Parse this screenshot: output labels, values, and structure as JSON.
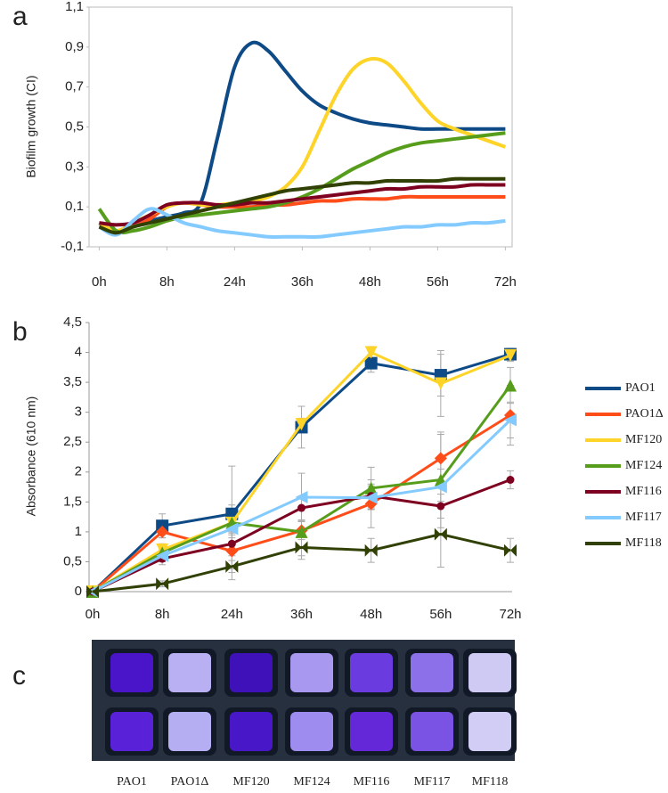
{
  "chart_data": [
    {
      "type": "line",
      "panel_label": "a",
      "y_label": "Biofilm growth (CI)",
      "xlim": [
        -0.15,
        6.1
      ],
      "ylim": [
        -0.1,
        1.1
      ],
      "xticks": [
        {
          "value": 0,
          "label": "0h"
        },
        {
          "value": 1,
          "label": "8h"
        },
        {
          "value": 2,
          "label": "24h"
        },
        {
          "value": 3,
          "label": "36h"
        },
        {
          "value": 4,
          "label": "48h"
        },
        {
          "value": 5,
          "label": "56h"
        },
        {
          "value": 6,
          "label": "72h"
        }
      ],
      "yticks": [
        {
          "value": -0.1,
          "label": "-0,1"
        },
        {
          "value": 0.1,
          "label": "0,1"
        },
        {
          "value": 0.3,
          "label": "0,3"
        },
        {
          "value": 0.5,
          "label": "0,5"
        },
        {
          "value": 0.7,
          "label": "0,7"
        },
        {
          "value": 0.9,
          "label": "0,9"
        },
        {
          "value": 1.1,
          "label": "1,1"
        }
      ],
      "grid": false,
      "x": [
        0,
        0.25,
        0.5,
        0.75,
        1,
        1.25,
        1.5,
        1.75,
        2,
        2.25,
        2.5,
        2.75,
        3,
        3.25,
        3.5,
        3.75,
        4,
        4.25,
        4.5,
        4.75,
        5,
        5.25,
        5.5,
        5.75,
        6
      ],
      "series": [
        {
          "color": "#0e4a86",
          "values": [
            0.02,
            -0.03,
            0.0,
            0.03,
            0.05,
            0.07,
            0.12,
            0.45,
            0.8,
            0.92,
            0.88,
            0.78,
            0.68,
            0.61,
            0.57,
            0.54,
            0.52,
            0.51,
            0.5,
            0.49,
            0.49,
            0.49,
            0.49,
            0.49,
            0.49
          ]
        },
        {
          "color": "#ff4d1a",
          "values": [
            0.0,
            -0.02,
            0.0,
            0.04,
            0.1,
            0.12,
            0.11,
            0.1,
            0.1,
            0.1,
            0.11,
            0.11,
            0.12,
            0.13,
            0.13,
            0.14,
            0.14,
            0.14,
            0.15,
            0.15,
            0.15,
            0.15,
            0.15,
            0.15,
            0.15
          ]
        },
        {
          "color": "#ffd428",
          "values": [
            0.02,
            -0.02,
            0.02,
            0.06,
            0.1,
            0.12,
            0.11,
            0.11,
            0.12,
            0.13,
            0.15,
            0.2,
            0.3,
            0.48,
            0.66,
            0.79,
            0.84,
            0.82,
            0.73,
            0.62,
            0.53,
            0.49,
            0.46,
            0.43,
            0.4
          ]
        },
        {
          "color": "#579d1c",
          "values": [
            0.09,
            -0.02,
            -0.02,
            0.0,
            0.03,
            0.05,
            0.06,
            0.07,
            0.08,
            0.09,
            0.1,
            0.12,
            0.15,
            0.19,
            0.24,
            0.29,
            0.33,
            0.37,
            0.4,
            0.42,
            0.43,
            0.44,
            0.45,
            0.46,
            0.47
          ]
        },
        {
          "color": "#7e0021",
          "values": [
            0.02,
            0.01,
            0.02,
            0.06,
            0.11,
            0.12,
            0.12,
            0.11,
            0.11,
            0.12,
            0.12,
            0.13,
            0.14,
            0.15,
            0.16,
            0.17,
            0.18,
            0.19,
            0.19,
            0.2,
            0.2,
            0.2,
            0.21,
            0.21,
            0.21
          ]
        },
        {
          "color": "#83caff",
          "values": [
            0.0,
            -0.04,
            0.03,
            0.09,
            0.06,
            0.02,
            0.0,
            -0.02,
            -0.03,
            -0.04,
            -0.05,
            -0.05,
            -0.05,
            -0.05,
            -0.04,
            -0.03,
            -0.02,
            -0.01,
            0.0,
            0.0,
            0.01,
            0.01,
            0.02,
            0.02,
            0.03
          ]
        },
        {
          "color": "#314004",
          "values": [
            0.0,
            -0.03,
            0.0,
            0.02,
            0.04,
            0.06,
            0.08,
            0.1,
            0.12,
            0.14,
            0.16,
            0.18,
            0.19,
            0.2,
            0.21,
            0.22,
            0.22,
            0.23,
            0.23,
            0.23,
            0.23,
            0.24,
            0.24,
            0.24,
            0.24
          ]
        }
      ]
    },
    {
      "type": "line-markers",
      "panel_label": "b",
      "y_label": "Absorbance (610 nm)",
      "categories": [
        "0h",
        "8h",
        "24h",
        "36h",
        "48h",
        "56h",
        "72h"
      ],
      "ylim": [
        0,
        4.5
      ],
      "yticks": [
        0,
        {
          "value": 0.5,
          "label": "0,5"
        },
        1,
        {
          "value": 1.5,
          "label": "1,5"
        },
        2,
        {
          "value": 2.5,
          "label": "2,5"
        },
        3,
        {
          "value": 3.5,
          "label": "3,5"
        },
        4,
        {
          "value": 4.5,
          "label": "4,5"
        }
      ],
      "grid": false,
      "legend": "right",
      "series": [
        {
          "name": "PAO1",
          "color": "#0e4a86",
          "marker": "square",
          "values": [
            0,
            1.1,
            1.3,
            2.75,
            3.82,
            3.62,
            3.97
          ],
          "errors": [
            0,
            0.2,
            0.15,
            0.35,
            0.15,
            0.35,
            0.1
          ]
        },
        {
          "name": "PAO1Δ",
          "color": "#ff4d1a",
          "marker": "diamond",
          "values": [
            0,
            1.0,
            0.68,
            1.02,
            1.47,
            2.23,
            2.95
          ],
          "errors": [
            0,
            0.1,
            0.3,
            0.15,
            0.4,
            0.4,
            0.5
          ]
        },
        {
          "name": "MF120",
          "color": "#ffd428",
          "marker": "triangle-down",
          "values": [
            0,
            0.7,
            1.15,
            2.8,
            4.0,
            3.48,
            3.95
          ],
          "errors": [
            0,
            0.1,
            0.2,
            0.1,
            0.1,
            0.55,
            0.1
          ]
        },
        {
          "name": "MF124",
          "color": "#579d1c",
          "marker": "triangle",
          "values": [
            0,
            0.65,
            1.15,
            1.0,
            1.73,
            1.87,
            3.45
          ],
          "errors": [
            0,
            0.1,
            0.95,
            0.4,
            0.35,
            0.8,
            0.3
          ]
        },
        {
          "name": "MF116",
          "color": "#7e0021",
          "marker": "circle",
          "values": [
            0,
            0.55,
            0.8,
            1.4,
            1.6,
            1.43,
            1.87
          ],
          "errors": [
            0,
            0.1,
            0.2,
            0.2,
            0.2,
            0.2,
            0.15
          ]
        },
        {
          "name": "MF117",
          "color": "#83caff",
          "marker": "triangle-left",
          "values": [
            0,
            0.6,
            1.05,
            1.58,
            1.57,
            1.75,
            2.87
          ],
          "errors": [
            0,
            0.1,
            0.15,
            0.4,
            0.2,
            0.3,
            0.3
          ]
        },
        {
          "name": "MF118",
          "color": "#314004",
          "marker": "bowtie",
          "values": [
            0,
            0.13,
            0.42,
            0.74,
            0.69,
            0.96,
            0.69
          ],
          "errors": [
            0,
            0.05,
            0.1,
            0.2,
            0.2,
            0.55,
            0.2
          ]
        }
      ]
    }
  ],
  "plate": {
    "panel_label": "c",
    "labels": [
      "PAO1",
      "PAO1Δ",
      "MF120",
      "MF124",
      "MF116",
      "MF117",
      "MF118"
    ]
  }
}
